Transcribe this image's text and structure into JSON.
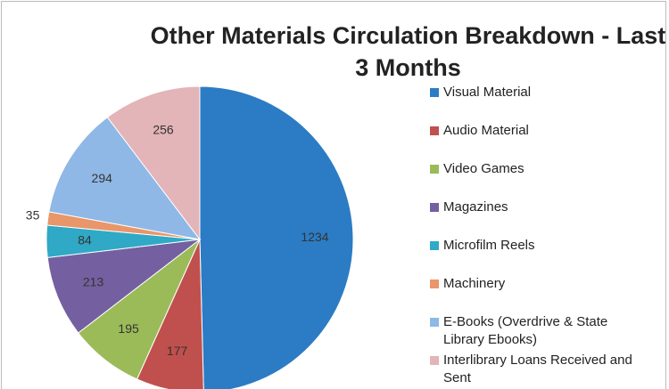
{
  "chart_data": {
    "type": "pie",
    "title": "Other Materials Circulation Breakdown - Last 3 Months",
    "categories": [
      "Visual Material",
      "Audio Material",
      "Video Games",
      "Magazines",
      "Microfilm Reels",
      "Machinery",
      "E-Books (Overdrive & State Library Ebooks)",
      "Interlibrary Loans Received and Sent"
    ],
    "values": [
      1234,
      177,
      195,
      213,
      84,
      35,
      294,
      256
    ],
    "colors": [
      "#2b7cc4",
      "#c0504d",
      "#9bbb59",
      "#7460a0",
      "#2fa9c6",
      "#e8966a",
      "#8fb8e6",
      "#e3b4b8"
    ],
    "legend": "right"
  }
}
